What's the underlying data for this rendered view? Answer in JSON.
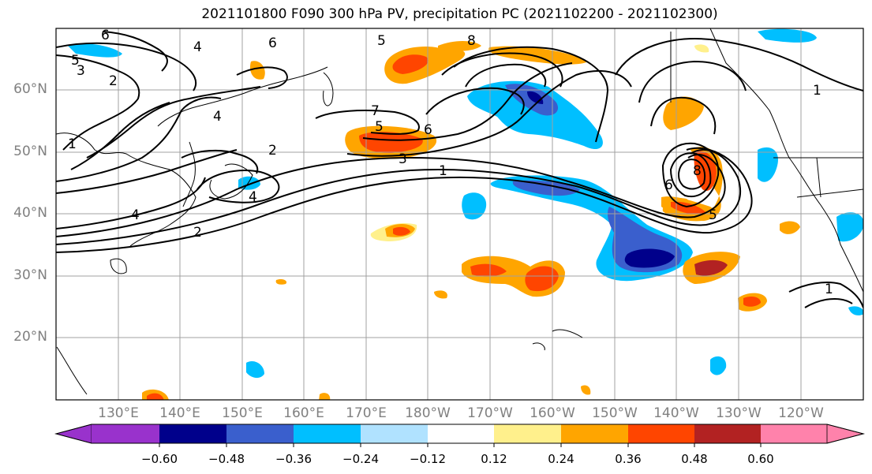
{
  "title": "2021101800 F090 300 hPa PV, precipitation PC (2021102200 - 2021102300)",
  "lat_labels": [
    "60°N",
    "50°N",
    "40°N",
    "30°N",
    "20°N"
  ],
  "lon_labels": [
    "130°E",
    "140°E",
    "150°E",
    "160°E",
    "170°E",
    "180°W",
    "170°W",
    "160°W",
    "150°W",
    "140°W",
    "130°W",
    "120°W"
  ],
  "colorbar": {
    "ticks": [
      "−0.60",
      "−0.48",
      "−0.36",
      "−0.24",
      "−0.12",
      "0.12",
      "0.24",
      "0.36",
      "0.48",
      "0.60"
    ],
    "colors": [
      "#9932cc",
      "#00008b",
      "#3a5fcd",
      "#00bfff",
      "#b0e2ff",
      "#ffffff",
      "#fff08c",
      "#ffa500",
      "#ff4500",
      "#b22222",
      "#ff82ab"
    ]
  },
  "contour_labels": [
    "6",
    "4",
    "6",
    "5",
    "8",
    "5",
    "3",
    "2",
    "7",
    "6",
    "5",
    "3",
    "1",
    "4",
    "2",
    "4",
    "4",
    "2",
    "1",
    "8",
    "6",
    "5",
    "1",
    "1"
  ],
  "map_extent": {
    "lon": [
      "120°E",
      "250°E"
    ],
    "lat": [
      "10°N",
      "70°N"
    ]
  }
}
